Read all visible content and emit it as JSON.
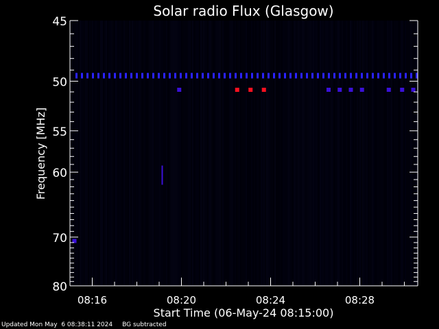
{
  "chart_data": {
    "type": "heatmap",
    "title": "Solar radio Flux (Glasgow)",
    "xlabel": "Start Time (06-May-24 08:15:00)",
    "ylabel": "Frequency [MHz]",
    "x_range_minutes": [
      15.0,
      30.6
    ],
    "y_range_mhz": [
      45,
      80
    ],
    "y_scale": "reciprocal",
    "x_ticks": [
      {
        "minute": 16,
        "label": "08:16"
      },
      {
        "minute": 20,
        "label": "08:20"
      },
      {
        "minute": 24,
        "label": "08:24"
      },
      {
        "minute": 28,
        "label": "08:28"
      }
    ],
    "y_ticks_major": [
      {
        "mhz": 45,
        "label": "45"
      },
      {
        "mhz": 50,
        "label": "50"
      },
      {
        "mhz": 55,
        "label": "55"
      },
      {
        "mhz": 60,
        "label": "60"
      },
      {
        "mhz": 70,
        "label": "70"
      },
      {
        "mhz": 80,
        "label": "80"
      }
    ],
    "background_color": "#02020d",
    "colors": {
      "low": "#02020d",
      "medium": "#3a10d8",
      "high": "#ff1020"
    },
    "constant_band": {
      "mhz": 49.5,
      "color": "#2a22ff"
    },
    "features": [
      {
        "minute": 15.2,
        "mhz": 70.7,
        "level": "medium"
      },
      {
        "minute": 19.2,
        "mhz": 60.4,
        "level": "medium"
      },
      {
        "minute": 19.9,
        "mhz": 50.8,
        "level": "medium"
      },
      {
        "minute": 22.5,
        "mhz": 50.8,
        "level": "high"
      },
      {
        "minute": 23.1,
        "mhz": 50.8,
        "level": "high"
      },
      {
        "minute": 23.7,
        "mhz": 50.8,
        "level": "high"
      },
      {
        "minute": 26.6,
        "mhz": 50.8,
        "level": "medium"
      },
      {
        "minute": 27.1,
        "mhz": 50.8,
        "level": "medium"
      },
      {
        "minute": 27.6,
        "mhz": 50.8,
        "level": "medium"
      },
      {
        "minute": 28.1,
        "mhz": 50.8,
        "level": "medium"
      },
      {
        "minute": 29.3,
        "mhz": 50.8,
        "level": "medium"
      },
      {
        "minute": 29.9,
        "mhz": 50.8,
        "level": "medium"
      },
      {
        "minute": 30.4,
        "mhz": 50.8,
        "level": "medium"
      }
    ]
  },
  "footer": {
    "updated": "Updated Mon May  6 08:38:11 2024",
    "note": "BG subtracted"
  }
}
